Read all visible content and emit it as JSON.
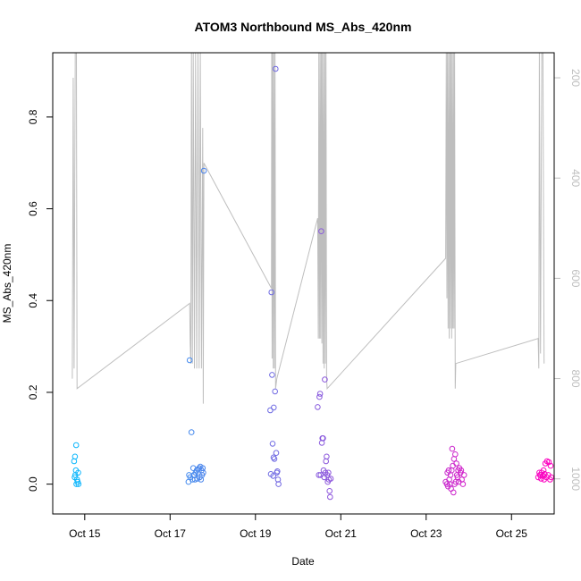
{
  "chart_data": {
    "type": "scatter",
    "title": "ATOM3 Northbound MS_Abs_420nm",
    "xlabel": "Date",
    "ylabel": "MS_Abs_420nm",
    "xlim": [
      "2017-10-14T06:00",
      "2017-10-26T00:00"
    ],
    "ylim": [
      -0.065,
      0.94
    ],
    "y2lim": [
      1070,
      150
    ],
    "x_ticks": [
      {
        "label": "Oct 15",
        "date": "2017-10-15T00:00"
      },
      {
        "label": "Oct 17",
        "date": "2017-10-17T00:00"
      },
      {
        "label": "Oct 19",
        "date": "2017-10-19T00:00"
      },
      {
        "label": "Oct 21",
        "date": "2017-10-21T00:00"
      },
      {
        "label": "Oct 23",
        "date": "2017-10-23T00:00"
      },
      {
        "label": "Oct 25",
        "date": "2017-10-25T00:00"
      }
    ],
    "y_ticks": [
      "0.0",
      "0.2",
      "0.4",
      "0.6",
      "0.8"
    ],
    "y2_ticks": [
      "200",
      "400",
      "600",
      "800",
      "1000"
    ],
    "grid": false,
    "legend": "none",
    "point_color_start": "#00bfff",
    "point_color_end": "#ff00bf",
    "line_color": "#bebebe",
    "series": [
      {
        "type": "scatter",
        "axis": "left",
        "points": [
          [
            "2017-10-14T18:00",
            0.05
          ],
          [
            "2017-10-14T19:10",
            0.085
          ],
          [
            "2017-10-14T18:30",
            0.06
          ],
          [
            "2017-10-14T19:00",
            0.03
          ],
          [
            "2017-10-14T18:40",
            0.02
          ],
          [
            "2017-10-14T20:20",
            0.025
          ],
          [
            "2017-10-14T19:40",
            0.01
          ],
          [
            "2017-10-14T20:00",
            0.005
          ],
          [
            "2017-10-14T19:20",
            0.0
          ],
          [
            "2017-10-14T20:30",
            0.0
          ],
          [
            "2017-10-14T18:20",
            0.015
          ],
          [
            "2017-10-17T11:00",
            0.27
          ],
          [
            "2017-10-17T12:00",
            0.113
          ],
          [
            "2017-10-17T13:00",
            0.035
          ],
          [
            "2017-10-17T10:40",
            0.02
          ],
          [
            "2017-10-17T11:20",
            0.015
          ],
          [
            "2017-10-17T12:30",
            0.01
          ],
          [
            "2017-10-17T10:20",
            0.005
          ],
          [
            "2017-10-17T13:40",
            0.02
          ],
          [
            "2017-10-17T14:20",
            0.025
          ],
          [
            "2017-10-17T15:00",
            0.03
          ],
          [
            "2017-10-17T15:40",
            0.032
          ],
          [
            "2017-10-17T16:20",
            0.035
          ],
          [
            "2017-10-17T17:00",
            0.038
          ],
          [
            "2017-10-17T17:40",
            0.03
          ],
          [
            "2017-10-17T18:20",
            0.035
          ],
          [
            "2017-10-17T14:00",
            0.01
          ],
          [
            "2017-10-17T15:20",
            0.012
          ],
          [
            "2017-10-17T16:40",
            0.015
          ],
          [
            "2017-10-17T18:00",
            0.02
          ],
          [
            "2017-10-17T18:40",
            0.025
          ],
          [
            "2017-10-17T19:00",
            0.683
          ],
          [
            "2017-10-17T13:20",
            0.02
          ],
          [
            "2017-10-17T17:20",
            0.01
          ],
          [
            "2017-10-19T09:00",
            0.418
          ],
          [
            "2017-10-19T09:20",
            0.238
          ],
          [
            "2017-10-19T11:00",
            0.202
          ],
          [
            "2017-10-19T10:20",
            0.167
          ],
          [
            "2017-10-19T08:20",
            0.161
          ],
          [
            "2017-10-19T09:40",
            0.088
          ],
          [
            "2017-10-19T11:40",
            0.068
          ],
          [
            "2017-10-19T10:40",
            0.055
          ],
          [
            "2017-10-19T12:00",
            0.025
          ],
          [
            "2017-10-19T08:40",
            0.022
          ],
          [
            "2017-10-19T10:00",
            0.018
          ],
          [
            "2017-10-19T12:40",
            0.01
          ],
          [
            "2017-10-19T13:00",
            0.0
          ],
          [
            "2017-10-19T11:20",
            0.905
          ],
          [
            "2017-10-19T10:10",
            0.058
          ],
          [
            "2017-10-19T12:20",
            0.028
          ],
          [
            "2017-10-20T11:00",
            0.168
          ],
          [
            "2017-10-20T12:00",
            0.19
          ],
          [
            "2017-10-20T12:20",
            0.197
          ],
          [
            "2017-10-20T13:00",
            0.551
          ],
          [
            "2017-10-20T15:00",
            0.228
          ],
          [
            "2017-10-20T13:40",
            0.1
          ],
          [
            "2017-10-20T14:00",
            0.1
          ],
          [
            "2017-10-20T13:20",
            0.09
          ],
          [
            "2017-10-20T16:00",
            0.06
          ],
          [
            "2017-10-20T15:40",
            0.05
          ],
          [
            "2017-10-20T14:20",
            0.03
          ],
          [
            "2017-10-20T15:20",
            0.025
          ],
          [
            "2017-10-20T16:20",
            0.02
          ],
          [
            "2017-10-20T17:00",
            0.025
          ],
          [
            "2017-10-20T11:40",
            0.02
          ],
          [
            "2017-10-20T14:40",
            0.015
          ],
          [
            "2017-10-20T17:20",
            0.01
          ],
          [
            "2017-10-20T16:40",
            0.005
          ],
          [
            "2017-10-20T17:40",
            -0.015
          ],
          [
            "2017-10-20T18:00",
            -0.028
          ],
          [
            "2017-10-20T12:40",
            0.02
          ],
          [
            "2017-10-20T18:20",
            0.012
          ],
          [
            "2017-10-23T11:00",
            0.005
          ],
          [
            "2017-10-23T11:40",
            0.0
          ],
          [
            "2017-10-23T12:20",
            -0.005
          ],
          [
            "2017-10-23T13:00",
            0.01
          ],
          [
            "2017-10-23T13:40",
            0.02
          ],
          [
            "2017-10-23T14:20",
            0.03
          ],
          [
            "2017-10-23T15:00",
            0.04
          ],
          [
            "2017-10-23T15:40",
            0.055
          ],
          [
            "2017-10-23T16:20",
            0.065
          ],
          [
            "2017-10-23T17:00",
            0.045
          ],
          [
            "2017-10-23T14:40",
            0.077
          ],
          [
            "2017-10-23T12:00",
            0.025
          ],
          [
            "2017-10-23T12:40",
            0.03
          ],
          [
            "2017-10-23T13:20",
            0.0
          ],
          [
            "2017-10-23T14:00",
            -0.01
          ],
          [
            "2017-10-23T15:20",
            -0.018
          ],
          [
            "2017-10-23T16:00",
            0.0
          ],
          [
            "2017-10-23T16:40",
            0.005
          ],
          [
            "2017-10-23T17:20",
            0.02
          ],
          [
            "2017-10-23T18:00",
            0.03
          ],
          [
            "2017-10-23T18:40",
            0.035
          ],
          [
            "2017-10-23T19:20",
            0.025
          ],
          [
            "2017-10-23T20:00",
            0.01
          ],
          [
            "2017-10-23T20:40",
            0.0
          ],
          [
            "2017-10-23T21:20",
            0.02
          ],
          [
            "2017-10-23T19:40",
            0.03
          ],
          [
            "2017-10-23T17:40",
            0.015
          ],
          [
            "2017-10-23T18:20",
            0.005
          ],
          [
            "2017-10-25T15:00",
            0.015
          ],
          [
            "2017-10-25T16:00",
            0.02
          ],
          [
            "2017-10-25T17:00",
            0.025
          ],
          [
            "2017-10-25T18:00",
            0.03
          ],
          [
            "2017-10-25T19:00",
            0.045
          ],
          [
            "2017-10-25T20:00",
            0.05
          ],
          [
            "2017-10-25T21:00",
            0.048
          ],
          [
            "2017-10-25T22:00",
            0.04
          ],
          [
            "2017-10-25T15:40",
            0.025
          ],
          [
            "2017-10-25T16:40",
            0.012
          ],
          [
            "2017-10-25T17:40",
            0.018
          ],
          [
            "2017-10-25T18:40",
            0.022
          ],
          [
            "2017-10-25T19:40",
            0.015
          ],
          [
            "2017-10-25T20:40",
            0.02
          ],
          [
            "2017-10-25T21:40",
            0.01
          ],
          [
            "2017-10-25T22:20",
            0.015
          ],
          [
            "2017-10-25T16:20",
            0.02
          ],
          [
            "2017-10-25T18:20",
            0.01
          ]
        ]
      },
      {
        "type": "line",
        "axis": "right",
        "points": [
          [
            "2017-10-14T17:00",
            800
          ],
          [
            "2017-10-14T17:30",
            200
          ],
          [
            "2017-10-14T18:00",
            780
          ],
          [
            "2017-10-14T18:40",
            150
          ],
          [
            "2017-10-14T19:20",
            150
          ],
          [
            "2017-10-14T19:40",
            820
          ],
          [
            "2017-10-17T11:00",
            650
          ],
          [
            "2017-10-17T11:20",
            730
          ],
          [
            "2017-10-17T11:40",
            770
          ],
          [
            "2017-10-17T12:00",
            150
          ],
          [
            "2017-10-17T12:30",
            770
          ],
          [
            "2017-10-17T13:00",
            150
          ],
          [
            "2017-10-17T13:40",
            780
          ],
          [
            "2017-10-17T14:20",
            150
          ],
          [
            "2017-10-17T15:00",
            780
          ],
          [
            "2017-10-17T15:40",
            150
          ],
          [
            "2017-10-17T16:20",
            780
          ],
          [
            "2017-10-17T17:00",
            150
          ],
          [
            "2017-10-17T17:40",
            780
          ],
          [
            "2017-10-17T18:20",
            300
          ],
          [
            "2017-10-17T18:40",
            850
          ],
          [
            "2017-10-17T19:00",
            370
          ],
          [
            "2017-10-19T09:00",
            620
          ],
          [
            "2017-10-19T09:10",
            150
          ],
          [
            "2017-10-19T09:20",
            760
          ],
          [
            "2017-10-19T09:40",
            150
          ],
          [
            "2017-10-19T10:00",
            780
          ],
          [
            "2017-10-19T10:20",
            150
          ],
          [
            "2017-10-19T10:40",
            780
          ],
          [
            "2017-10-19T11:00",
            150
          ],
          [
            "2017-10-19T11:20",
            820
          ],
          [
            "2017-10-19T12:00",
            800
          ],
          [
            "2017-10-20T11:00",
            480
          ],
          [
            "2017-10-20T11:20",
            720
          ],
          [
            "2017-10-20T11:40",
            150
          ],
          [
            "2017-10-20T12:00",
            720
          ],
          [
            "2017-10-20T12:20",
            150
          ],
          [
            "2017-10-20T12:40",
            720
          ],
          [
            "2017-10-20T13:00",
            150
          ],
          [
            "2017-10-20T13:20",
            730
          ],
          [
            "2017-10-20T13:40",
            150
          ],
          [
            "2017-10-20T14:00",
            770
          ],
          [
            "2017-10-20T14:20",
            150
          ],
          [
            "2017-10-20T14:40",
            780
          ],
          [
            "2017-10-20T15:00",
            150
          ],
          [
            "2017-10-20T15:20",
            770
          ],
          [
            "2017-10-20T15:40",
            150
          ],
          [
            "2017-10-20T16:00",
            800
          ],
          [
            "2017-10-20T16:20",
            820
          ],
          [
            "2017-10-23T11:00",
            560
          ],
          [
            "2017-10-23T11:20",
            150
          ],
          [
            "2017-10-23T11:40",
            640
          ],
          [
            "2017-10-23T12:00",
            150
          ],
          [
            "2017-10-23T12:20",
            700
          ],
          [
            "2017-10-23T12:40",
            150
          ],
          [
            "2017-10-23T13:00",
            720
          ],
          [
            "2017-10-23T13:20",
            150
          ],
          [
            "2017-10-23T13:40",
            700
          ],
          [
            "2017-10-23T14:00",
            150
          ],
          [
            "2017-10-23T14:20",
            720
          ],
          [
            "2017-10-23T14:40",
            150
          ],
          [
            "2017-10-23T15:00",
            700
          ],
          [
            "2017-10-23T15:20",
            150
          ],
          [
            "2017-10-23T15:40",
            700
          ],
          [
            "2017-10-23T16:00",
            150
          ],
          [
            "2017-10-23T16:20",
            820
          ],
          [
            "2017-10-23T16:40",
            770
          ],
          [
            "2017-10-25T15:00",
            720
          ],
          [
            "2017-10-25T15:20",
            780
          ],
          [
            "2017-10-25T15:40",
            150
          ],
          [
            "2017-10-25T16:20",
            750
          ],
          [
            "2017-10-25T17:00",
            150
          ],
          [
            "2017-10-25T17:40",
            150
          ],
          [
            "2017-10-25T18:20",
            770
          ]
        ]
      }
    ]
  }
}
